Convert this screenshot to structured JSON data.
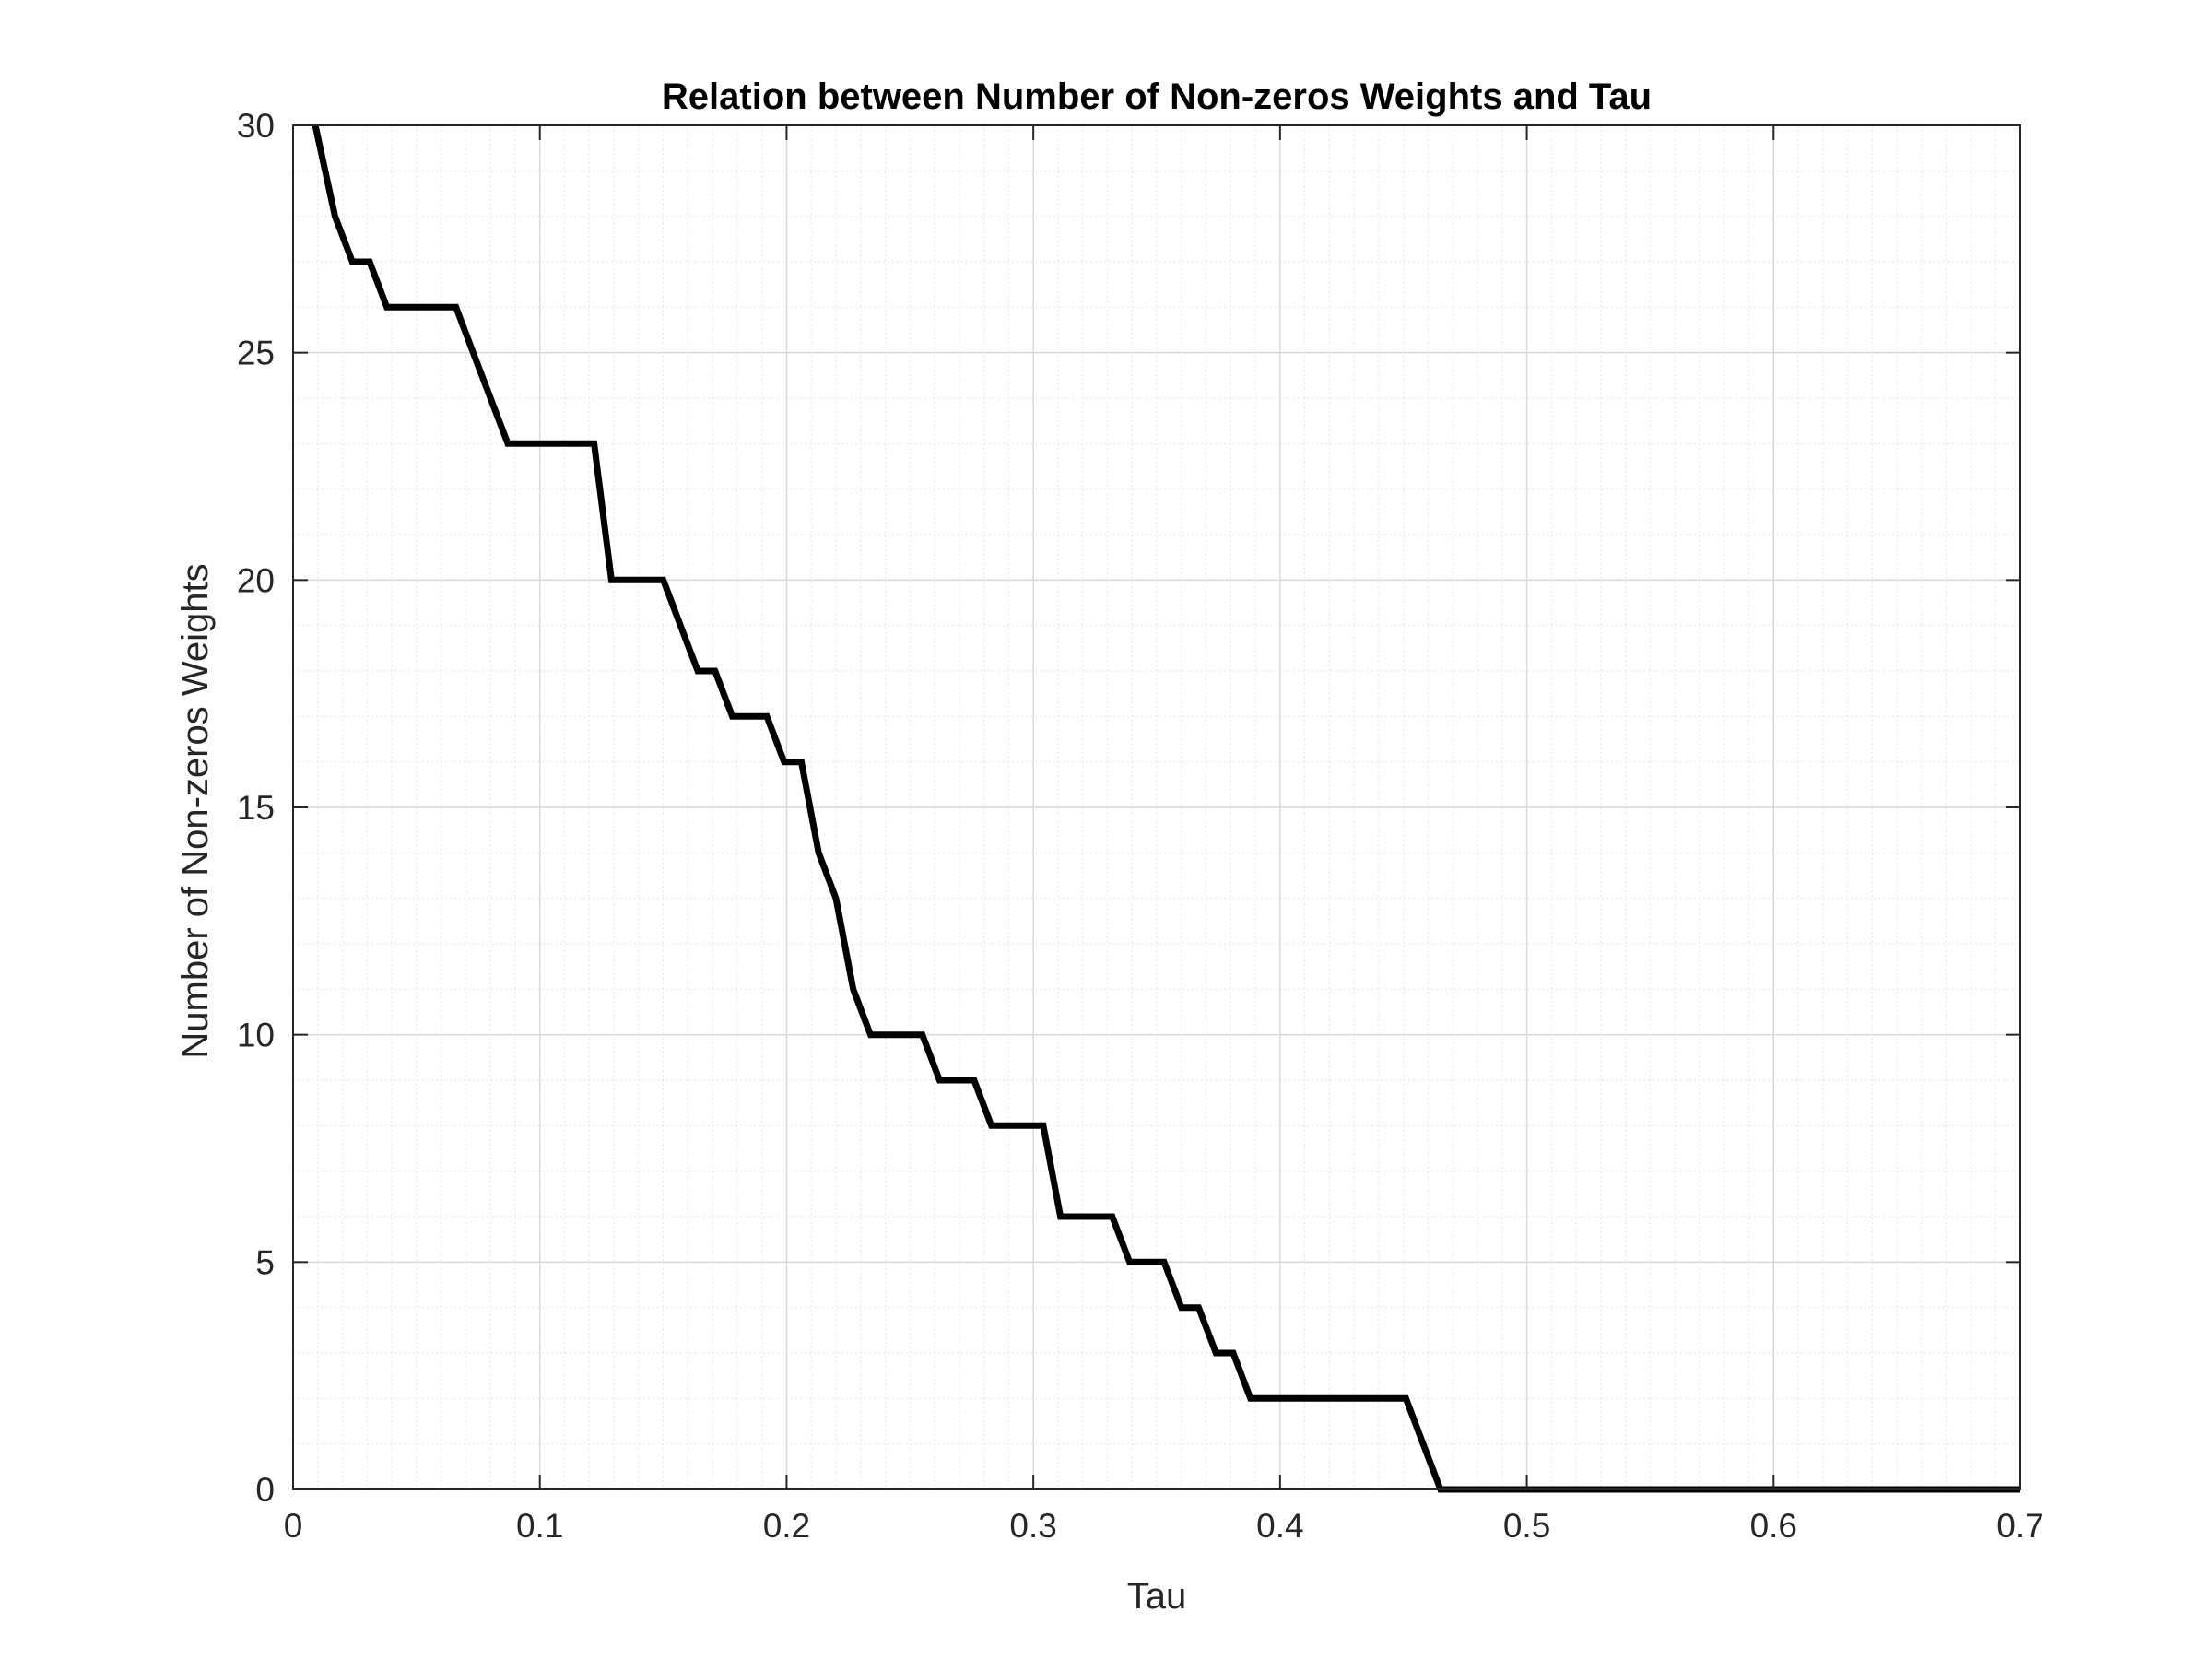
{
  "colors": {
    "background": "#ffffff",
    "line": "#000000",
    "axis": "#262626",
    "major_grid": "#d9d9d9",
    "minor_grid": "#e8e8e8"
  },
  "chart_data": {
    "type": "line",
    "title": "Relation between Number of Non-zeros Weights and Tau",
    "xlabel": "Tau",
    "ylabel": "Number of Non-zeros Weights",
    "xlim": [
      0,
      0.7
    ],
    "ylim": [
      0,
      30
    ],
    "xticks": [
      0,
      0.1,
      0.2,
      0.3,
      0.4,
      0.5,
      0.6,
      0.7
    ],
    "xtick_labels": [
      "0",
      "0.1",
      "0.2",
      "0.3",
      "0.4",
      "0.5",
      "0.6",
      "0.7"
    ],
    "yticks": [
      0,
      5,
      10,
      15,
      20,
      25,
      30
    ],
    "ytick_labels": [
      "0",
      "5",
      "10",
      "15",
      "20",
      "25",
      "30"
    ],
    "grid": true,
    "minor_grid": true,
    "box": true,
    "series": [
      {
        "color": "#000000",
        "x": [
          0.009,
          0.017,
          0.024,
          0.031,
          0.038,
          0.045,
          0.052,
          0.059,
          0.066,
          0.073,
          0.08,
          0.087,
          0.094,
          0.101,
          0.108,
          0.115,
          0.122,
          0.129,
          0.136,
          0.143,
          0.15,
          0.157,
          0.164,
          0.171,
          0.178,
          0.185,
          0.192,
          0.199,
          0.206,
          0.213,
          0.22,
          0.227,
          0.234,
          0.241,
          0.248,
          0.255,
          0.262,
          0.269,
          0.276,
          0.283,
          0.29,
          0.297,
          0.304,
          0.311,
          0.318,
          0.325,
          0.332,
          0.339,
          0.346,
          0.353,
          0.36,
          0.367,
          0.374,
          0.381,
          0.388,
          0.395,
          0.402,
          0.409,
          0.416,
          0.423,
          0.43,
          0.437,
          0.444,
          0.451,
          0.458,
          0.465,
          0.472,
          0.7
        ],
        "y": [
          30,
          28,
          27,
          27,
          26,
          26,
          26,
          26,
          26,
          25,
          24,
          23,
          23,
          23,
          23,
          23,
          23,
          20,
          20,
          20,
          20,
          19,
          18,
          18,
          17,
          17,
          17,
          16,
          16,
          14,
          13,
          11,
          10,
          10,
          10,
          10,
          9,
          9,
          9,
          8,
          8,
          8,
          8,
          6,
          6,
          6,
          6,
          5,
          5,
          5,
          4,
          4,
          3,
          3,
          2,
          2,
          2,
          2,
          2,
          2,
          2,
          2,
          2,
          2,
          1,
          0,
          0,
          0
        ]
      }
    ]
  }
}
